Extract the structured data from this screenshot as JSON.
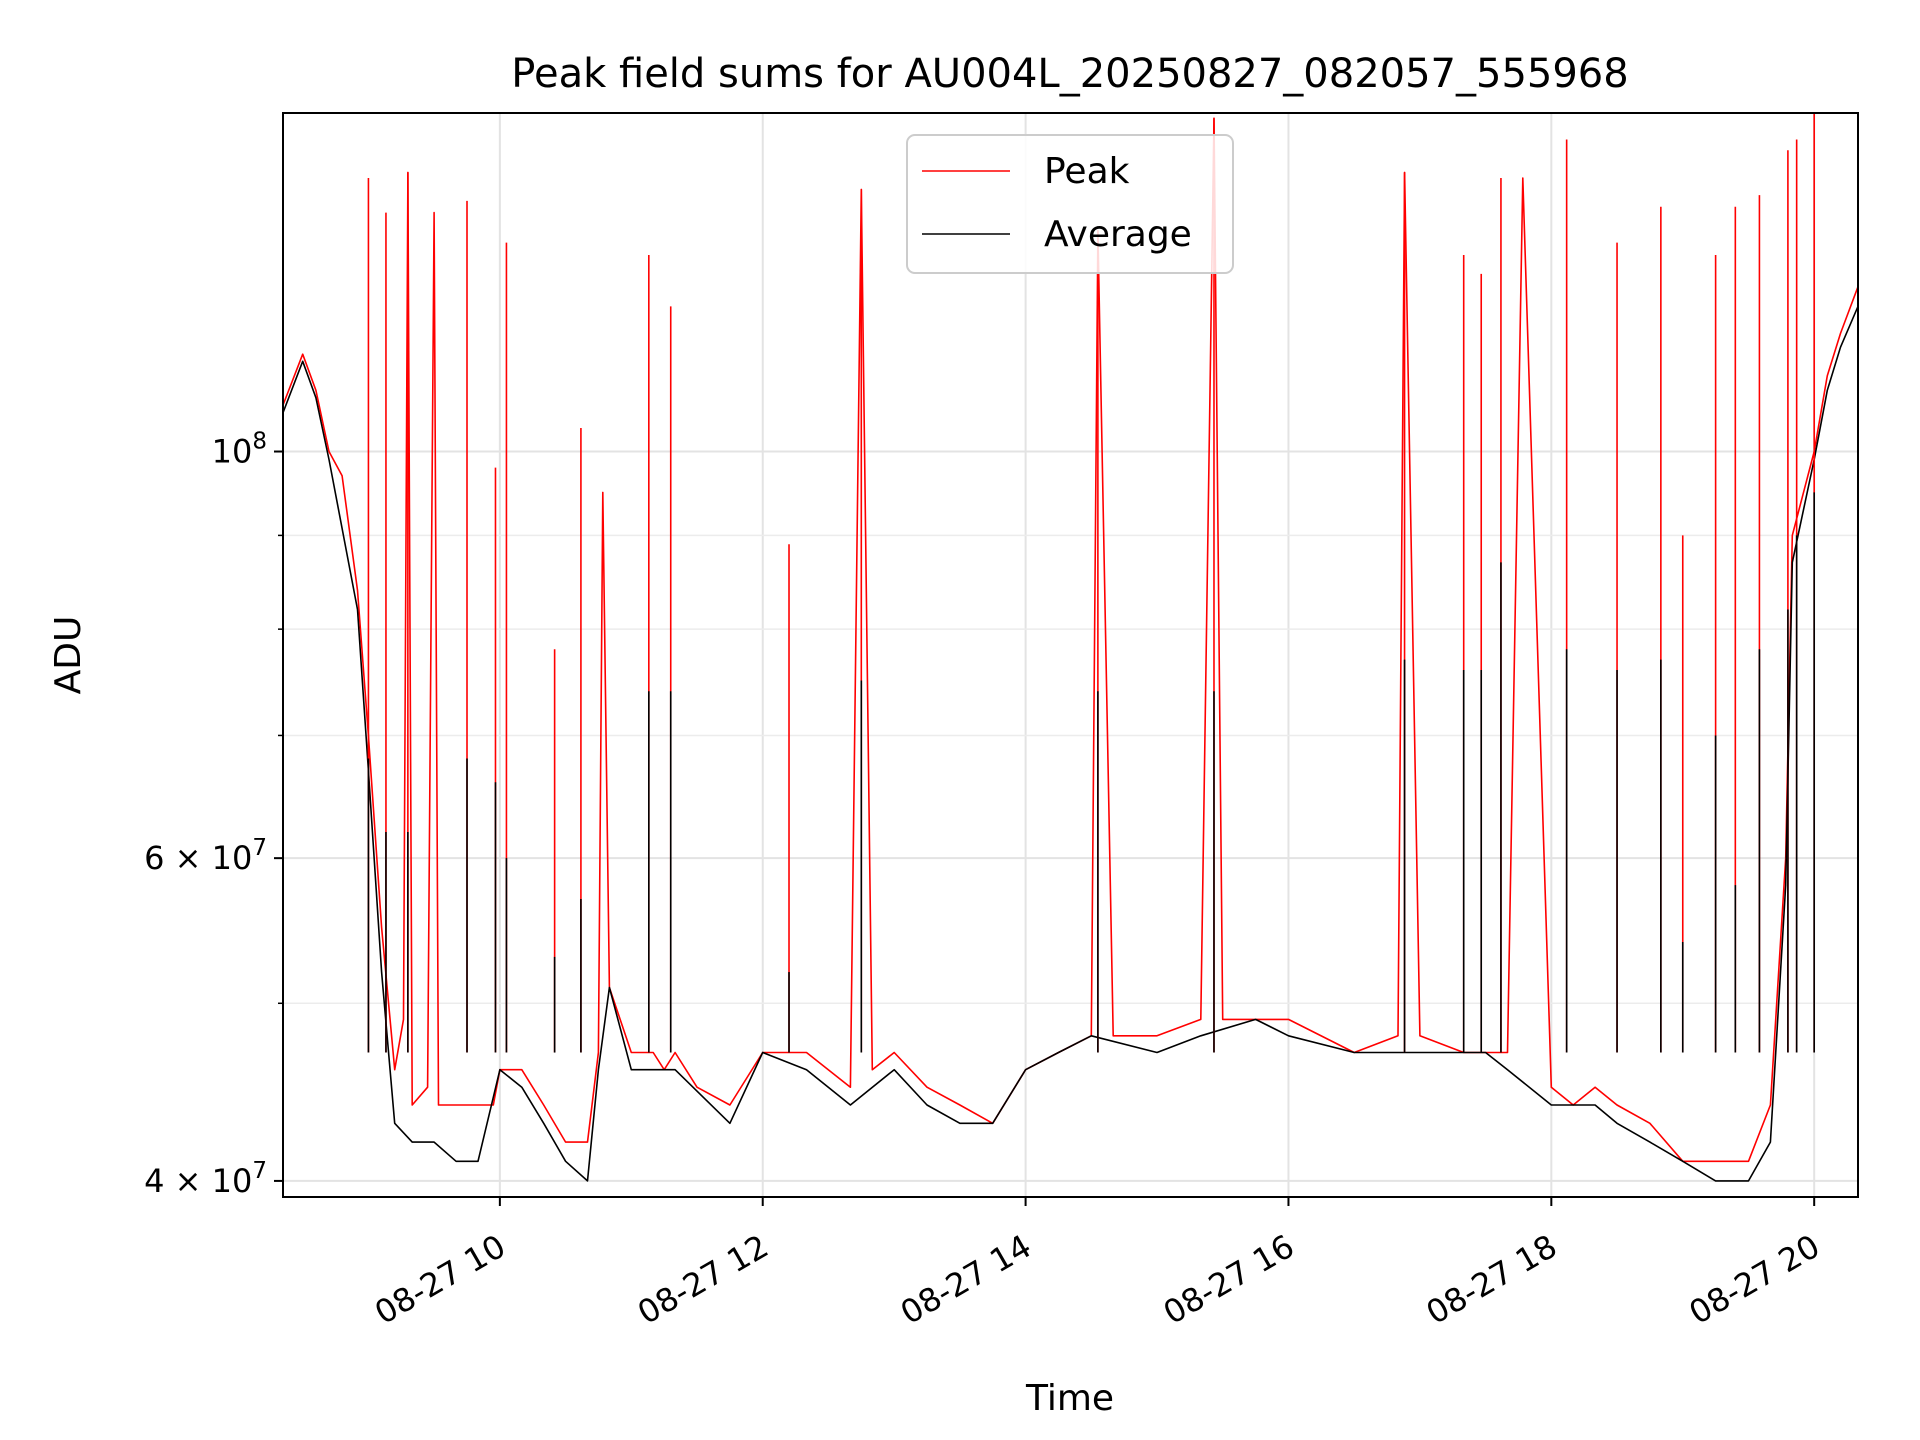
{
  "chart_data": {
    "type": "line",
    "title": "Peak field sums for AU004L_20250827_082057_555968",
    "xlabel": "Time",
    "ylabel": "ADU",
    "yscale": "log",
    "ylim": [
      39200000,
      153000000
    ],
    "xlim": [
      "08-27 08:21",
      "08-27 20:20"
    ],
    "grid": true,
    "legend_position": "top-center",
    "x_ticks": [
      "08-27 10",
      "08-27 12",
      "08-27 14",
      "08-27 16",
      "08-27 18",
      "08-27 20"
    ],
    "y_ticks": [
      {
        "label_base": "4 × 10",
        "label_exp": "7",
        "value": 40000000
      },
      {
        "label_base": "6 × 10",
        "label_exp": "7",
        "value": 60000000
      },
      {
        "label_base": "10",
        "label_exp": "8",
        "value": 100000000
      }
    ],
    "y_minor_ticks": [
      50000000,
      70000000,
      80000000,
      90000000
    ],
    "colors": {
      "peak": "#ff0000",
      "average": "#000000"
    },
    "series": [
      {
        "name": "Peak",
        "color": "#ff0000",
        "points": [
          [
            "08-27 08:21",
            106000000
          ],
          [
            "08-27 08:30",
            113000000
          ],
          [
            "08-27 08:36",
            108000000
          ],
          [
            "08-27 08:42",
            100000000
          ],
          [
            "08-27 08:48",
            97000000
          ],
          [
            "08-27 08:55",
            84000000
          ],
          [
            "08-27 09:00",
            70000000
          ],
          [
            "08-27 09:06",
            55000000
          ],
          [
            "08-27 09:12",
            46000000
          ],
          [
            "08-27 09:16",
            49000000
          ],
          [
            "08-27 09:18",
            142000000
          ],
          [
            "08-27 09:20",
            44000000
          ],
          [
            "08-27 09:27",
            45000000
          ],
          [
            "08-27 09:30",
            135000000
          ],
          [
            "08-27 09:32",
            44000000
          ],
          [
            "08-27 09:45",
            44000000
          ],
          [
            "08-27 09:50",
            44000000
          ],
          [
            "08-27 09:57",
            44000000
          ],
          [
            "08-27 10:00",
            46000000
          ],
          [
            "08-27 10:10",
            46000000
          ],
          [
            "08-27 10:20",
            44000000
          ],
          [
            "08-27 10:30",
            42000000
          ],
          [
            "08-27 10:40",
            42000000
          ],
          [
            "08-27 10:45",
            47000000
          ],
          [
            "08-27 10:47",
            95000000
          ],
          [
            "08-27 10:50",
            51000000
          ],
          [
            "08-27 11:00",
            47000000
          ],
          [
            "08-27 11:10",
            47000000
          ],
          [
            "08-27 11:15",
            46000000
          ],
          [
            "08-27 11:20",
            47000000
          ],
          [
            "08-27 11:30",
            45000000
          ],
          [
            "08-27 11:45",
            44000000
          ],
          [
            "08-27 12:00",
            47000000
          ],
          [
            "08-27 12:20",
            47000000
          ],
          [
            "08-27 12:40",
            45000000
          ],
          [
            "08-27 12:45",
            139000000
          ],
          [
            "08-27 12:50",
            46000000
          ],
          [
            "08-27 13:00",
            47000000
          ],
          [
            "08-27 13:15",
            45000000
          ],
          [
            "08-27 13:30",
            44000000
          ],
          [
            "08-27 13:45",
            43000000
          ],
          [
            "08-27 14:00",
            46000000
          ],
          [
            "08-27 14:15",
            47000000
          ],
          [
            "08-27 14:30",
            48000000
          ],
          [
            "08-27 14:33",
            132000000
          ],
          [
            "08-27 14:40",
            48000000
          ],
          [
            "08-27 15:00",
            48000000
          ],
          [
            "08-27 15:20",
            49000000
          ],
          [
            "08-27 15:26",
            152000000
          ],
          [
            "08-27 15:30",
            49000000
          ],
          [
            "08-27 15:45",
            49000000
          ],
          [
            "08-27 16:00",
            49000000
          ],
          [
            "08-27 16:30",
            47000000
          ],
          [
            "08-27 16:50",
            48000000
          ],
          [
            "08-27 16:53",
            142000000
          ],
          [
            "08-27 17:00",
            48000000
          ],
          [
            "08-27 17:20",
            47000000
          ],
          [
            "08-27 17:30",
            47000000
          ],
          [
            "08-27 17:40",
            47000000
          ],
          [
            "08-27 17:47",
            141000000
          ],
          [
            "08-27 18:00",
            45000000
          ],
          [
            "08-27 18:10",
            44000000
          ],
          [
            "08-27 18:20",
            45000000
          ],
          [
            "08-27 18:30",
            44000000
          ],
          [
            "08-27 18:45",
            43000000
          ],
          [
            "08-27 19:00",
            41000000
          ],
          [
            "08-27 19:15",
            41000000
          ],
          [
            "08-27 19:30",
            41000000
          ],
          [
            "08-27 19:40",
            44000000
          ],
          [
            "08-27 19:47",
            60000000
          ],
          [
            "08-27 19:50",
            90000000
          ],
          [
            "08-27 20:00",
            100000000
          ],
          [
            "08-27 20:06",
            110000000
          ],
          [
            "08-27 20:12",
            116000000
          ],
          [
            "08-27 20:20",
            123000000
          ]
        ]
      },
      {
        "name": "Average",
        "color": "#000000",
        "points": [
          [
            "08-27 08:21",
            105000000
          ],
          [
            "08-27 08:30",
            112000000
          ],
          [
            "08-27 08:36",
            107000000
          ],
          [
            "08-27 08:42",
            99000000
          ],
          [
            "08-27 08:55",
            82000000
          ],
          [
            "08-27 09:00",
            67000000
          ],
          [
            "08-27 09:06",
            52000000
          ],
          [
            "08-27 09:12",
            43000000
          ],
          [
            "08-27 09:20",
            42000000
          ],
          [
            "08-27 09:30",
            42000000
          ],
          [
            "08-27 09:40",
            41000000
          ],
          [
            "08-27 09:50",
            41000000
          ],
          [
            "08-27 10:00",
            46000000
          ],
          [
            "08-27 10:10",
            45000000
          ],
          [
            "08-27 10:20",
            43000000
          ],
          [
            "08-27 10:30",
            41000000
          ],
          [
            "08-27 10:40",
            40000000
          ],
          [
            "08-27 10:45",
            46000000
          ],
          [
            "08-27 10:50",
            51000000
          ],
          [
            "08-27 11:00",
            46000000
          ],
          [
            "08-27 11:20",
            46000000
          ],
          [
            "08-27 11:45",
            43000000
          ],
          [
            "08-27 12:00",
            47000000
          ],
          [
            "08-27 12:20",
            46000000
          ],
          [
            "08-27 12:40",
            44000000
          ],
          [
            "08-27 13:00",
            46000000
          ],
          [
            "08-27 13:15",
            44000000
          ],
          [
            "08-27 13:30",
            43000000
          ],
          [
            "08-27 13:45",
            43000000
          ],
          [
            "08-27 14:00",
            46000000
          ],
          [
            "08-27 14:15",
            47000000
          ],
          [
            "08-27 14:30",
            48000000
          ],
          [
            "08-27 15:00",
            47000000
          ],
          [
            "08-27 15:20",
            48000000
          ],
          [
            "08-27 15:45",
            49000000
          ],
          [
            "08-27 16:00",
            48000000
          ],
          [
            "08-27 16:30",
            47000000
          ],
          [
            "08-27 17:00",
            47000000
          ],
          [
            "08-27 17:30",
            47000000
          ],
          [
            "08-27 17:40",
            46000000
          ],
          [
            "08-27 18:00",
            44000000
          ],
          [
            "08-27 18:10",
            44000000
          ],
          [
            "08-27 18:20",
            44000000
          ],
          [
            "08-27 18:30",
            43000000
          ],
          [
            "08-27 18:45",
            42000000
          ],
          [
            "08-27 19:00",
            41000000
          ],
          [
            "08-27 19:15",
            40000000
          ],
          [
            "08-27 19:30",
            40000000
          ],
          [
            "08-27 19:40",
            42000000
          ],
          [
            "08-27 19:47",
            58000000
          ],
          [
            "08-27 19:50",
            87000000
          ],
          [
            "08-27 20:00",
            99000000
          ],
          [
            "08-27 20:06",
            108000000
          ],
          [
            "08-27 20:12",
            114000000
          ],
          [
            "08-27 20:20",
            120000000
          ]
        ]
      }
    ],
    "spikes": [
      {
        "time": "08-27 09:00",
        "peak": 141000000,
        "average": 68000000
      },
      {
        "time": "08-27 09:08",
        "peak": 135000000,
        "average": 62000000
      },
      {
        "time": "08-27 09:18",
        "peak": 142000000,
        "average": 62000000
      },
      {
        "time": "08-27 09:45",
        "peak": 137000000,
        "average": 68000000
      },
      {
        "time": "08-27 09:58",
        "peak": 98000000,
        "average": 66000000
      },
      {
        "time": "08-27 10:03",
        "peak": 130000000,
        "average": 60000000
      },
      {
        "time": "08-27 10:25",
        "peak": 78000000,
        "average": 53000000
      },
      {
        "time": "08-27 10:37",
        "peak": 103000000,
        "average": 57000000
      },
      {
        "time": "08-27 11:08",
        "peak": 128000000,
        "average": 74000000
      },
      {
        "time": "08-27 11:18",
        "peak": 120000000,
        "average": 74000000
      },
      {
        "time": "08-27 12:12",
        "peak": 89000000,
        "average": 52000000
      },
      {
        "time": "08-27 12:45",
        "peak": 139000000,
        "average": 75000000
      },
      {
        "time": "08-27 14:33",
        "peak": 132000000,
        "average": 74000000
      },
      {
        "time": "08-27 15:26",
        "peak": 152000000,
        "average": 74000000
      },
      {
        "time": "08-27 16:53",
        "peak": 142000000,
        "average": 77000000
      },
      {
        "time": "08-27 17:20",
        "peak": 128000000,
        "average": 76000000
      },
      {
        "time": "08-27 17:28",
        "peak": 125000000,
        "average": 76000000
      },
      {
        "time": "08-27 17:37",
        "peak": 141000000,
        "average": 87000000
      },
      {
        "time": "08-27 18:07",
        "peak": 148000000,
        "average": 78000000
      },
      {
        "time": "08-27 18:30",
        "peak": 130000000,
        "average": 76000000
      },
      {
        "time": "08-27 18:50",
        "peak": 136000000,
        "average": 77000000
      },
      {
        "time": "08-27 19:00",
        "peak": 90000000,
        "average": 54000000
      },
      {
        "time": "08-27 19:15",
        "peak": 128000000,
        "average": 70000000
      },
      {
        "time": "08-27 19:24",
        "peak": 136000000,
        "average": 58000000
      },
      {
        "time": "08-27 19:35",
        "peak": 138000000,
        "average": 78000000
      },
      {
        "time": "08-27 19:48",
        "peak": 146000000,
        "average": 82000000
      },
      {
        "time": "08-27 19:52",
        "peak": 148000000,
        "average": 90000000
      },
      {
        "time": "08-27 20:00",
        "peak": 153000000,
        "average": 95000000
      }
    ]
  }
}
